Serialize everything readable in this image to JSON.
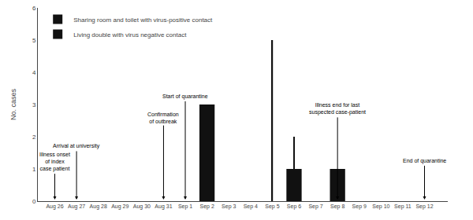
{
  "chart_data": {
    "type": "bar",
    "categories": [
      "Aug 26",
      "Aug 27",
      "Aug 28",
      "Aug 29",
      "Aug 30",
      "Aug 31",
      "Sep 1",
      "Sep 2",
      "Sep 3",
      "Sep 4",
      "Sep 5",
      "Sep 6",
      "Sep 7",
      "Sep 8",
      "Sep 9",
      "Sep 10",
      "Sep 11",
      "Sep 12"
    ],
    "series": [
      {
        "name": "Sharing room and toilet with virus-positive contact",
        "color": "#111111",
        "type": "bar",
        "values": [
          0,
          0,
          0,
          0,
          0,
          0,
          0,
          3,
          0,
          0,
          0,
          1,
          0,
          1,
          0,
          0,
          0,
          0
        ]
      },
      {
        "name": "Living double with virus negative contact",
        "color": "#111111",
        "type": "stem",
        "values": [
          0,
          0,
          0,
          0,
          0,
          0,
          0,
          0,
          0,
          0,
          5,
          2,
          0,
          0,
          0,
          0,
          0,
          0
        ]
      }
    ],
    "ylabel": "No. cases",
    "ylim": [
      0,
      6
    ],
    "yticks": [
      0,
      1,
      2,
      3,
      4,
      5,
      6
    ],
    "grid": false,
    "legend": "upper left",
    "annotations": [
      {
        "text": "Illness onset\nof index\ncase patient",
        "x": "Aug 26",
        "y": 0.05,
        "text_y": 0.85
      },
      {
        "text": "Arrival at university",
        "x": "Aug 27",
        "y": 0.05,
        "text_y": 1.55
      },
      {
        "text": "Confirmation\nof outbreak",
        "x": "Aug 31",
        "y": 0.05,
        "text_y": 2.35
      },
      {
        "text": "Start of quarantine",
        "x": "Sep 1",
        "y": 0.05,
        "text_y": 3.1
      },
      {
        "text": "Illness end for last\nsuspected case-patient",
        "x": "Sep 8",
        "y": 0.05,
        "text_y": 2.6
      },
      {
        "text": "End of quarantine",
        "x": "Sep 12",
        "y": 0.05,
        "text_y": 1.1
      }
    ]
  }
}
